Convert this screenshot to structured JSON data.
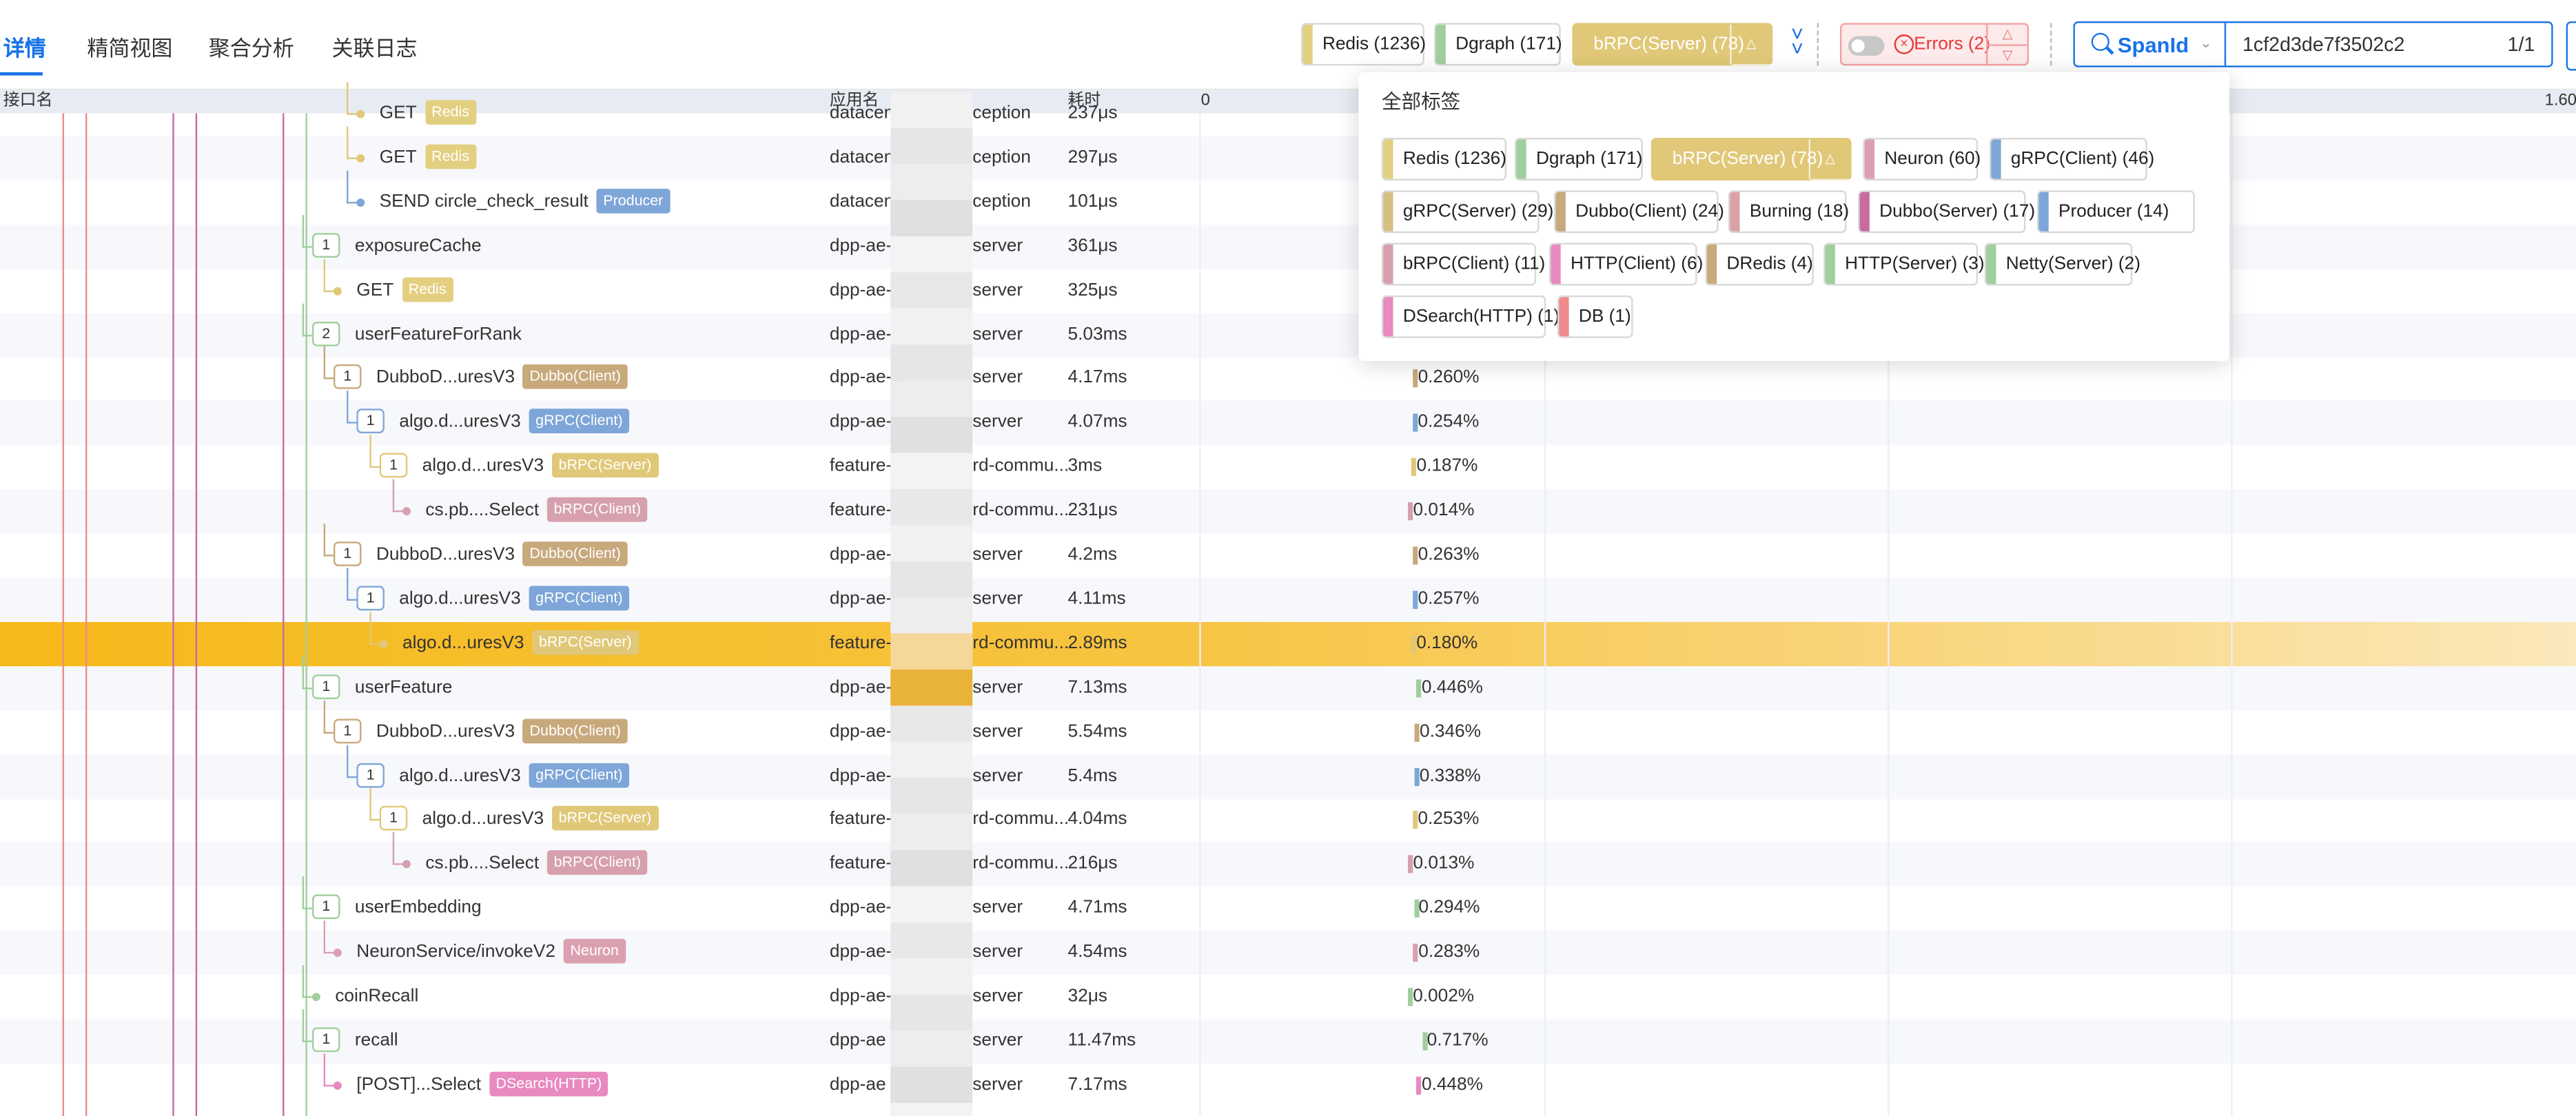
{
  "tabs": [
    "详情",
    "精简视图",
    "聚合分析",
    "关联日志"
  ],
  "active_tab": 0,
  "toolbar": {
    "chips": [
      {
        "label": "Redis (1236)",
        "color": "#e3cf80",
        "selected": false
      },
      {
        "label": "Dgraph (171)",
        "color": "#9fcf9c",
        "selected": false
      },
      {
        "label": "bRPC(Server) (78)",
        "color": "#e0c878",
        "selected": true
      }
    ],
    "expand_icon": "chevrons-down-icon",
    "errors_label": "Errors (2)",
    "search": {
      "field": "SpanId",
      "value": "1cf2d3de7f3502c2",
      "count": "1/1"
    }
  },
  "dropdown": {
    "title": "全部标签",
    "tags": [
      {
        "label": "Redis (1236)",
        "color": "#e3cf80"
      },
      {
        "label": "Dgraph (171)",
        "color": "#9fcf9c"
      },
      {
        "label": "bRPC(Server) (78)",
        "color": "#e0c878",
        "selected": true
      },
      {
        "label": "Neuron (60)",
        "color": "#dba0b0"
      },
      {
        "label": "gRPC(Client) (46)",
        "color": "#7ea6d8"
      },
      {
        "label": "gRPC(Server) (29)",
        "color": "#d6bf82"
      },
      {
        "label": "Dubbo(Client) (24)",
        "color": "#c8a97c"
      },
      {
        "label": "Burning (18)",
        "color": "#dba0a8"
      },
      {
        "label": "Dubbo(Server) (17)",
        "color": "#c76ba0"
      },
      {
        "label": "Producer (14)",
        "color": "#7ea6d8"
      },
      {
        "label": "bRPC(Client) (11)",
        "color": "#d7a0ae"
      },
      {
        "label": "HTTP(Client) (6)",
        "color": "#e889c0"
      },
      {
        "label": "DRedis (4)",
        "color": "#c8a97c"
      },
      {
        "label": "HTTP(Server) (3)",
        "color": "#9fcf9c"
      },
      {
        "label": "Netty(Server) (2)",
        "color": "#9fcf9c"
      },
      {
        "label": "DSearch(HTTP) (1)",
        "color": "#e889c0"
      },
      {
        "label": "DB (1)",
        "color": "#ef8a8a"
      }
    ]
  },
  "table": {
    "headers": {
      "name": "接口名",
      "app": "应用名",
      "time": "耗时",
      "axis_start": "0",
      "axis_end": "1.60"
    },
    "rows": [
      {
        "indent": 3,
        "count": null,
        "name": "GET",
        "badge": "Redis",
        "badge_color": "#e3cf80",
        "app": "datacent",
        "app2": "ception",
        "time": "237μs",
        "pct": "",
        "line_color": "#e0c878",
        "dot": true
      },
      {
        "indent": 3,
        "count": null,
        "name": "GET",
        "badge": "Redis",
        "badge_color": "#e3cf80",
        "app": "datacent",
        "app2": "ception",
        "time": "297μs",
        "pct": "",
        "line_color": "#e0c878",
        "dot": true
      },
      {
        "indent": 3,
        "count": null,
        "name": "SEND circle_check_result",
        "badge": "Producer",
        "badge_color": "#7ea6d8",
        "app": "datacent",
        "app2": "ception",
        "time": "101μs",
        "pct": "",
        "line_color": "#7ea6d8",
        "dot": true
      },
      {
        "indent": 1,
        "count": "1",
        "name": "exposureCache",
        "badge": "",
        "badge_color": "",
        "app": "dpp-ae-c",
        "app2": "server",
        "time": "361μs",
        "pct": "",
        "line_color": "#9fcf9c",
        "dot": false
      },
      {
        "indent": 2,
        "count": null,
        "name": "GET",
        "badge": "Redis",
        "badge_color": "#e3cf80",
        "app": "dpp-ae-c",
        "app2": "server",
        "time": "325μs",
        "pct": "",
        "line_color": "#e0c878",
        "dot": true
      },
      {
        "indent": 1,
        "count": "2",
        "name": "userFeatureForRank",
        "badge": "",
        "badge_color": "",
        "app": "dpp-ae-c",
        "app2": "server",
        "time": "5.03ms",
        "pct": "",
        "line_color": "#9fcf9c",
        "dot": false
      },
      {
        "indent": 2,
        "count": "1",
        "name": "DubboD...uresV3",
        "badge": "Dubbo(Client)",
        "badge_color": "#c8a97c",
        "app": "dpp-ae-c",
        "app2": "server",
        "time": "4.17ms",
        "pct": "0.260%",
        "pct_color": "#c8a97c",
        "line_color": "#c8a97c",
        "dot": false
      },
      {
        "indent": 3,
        "count": "1",
        "name": "algo.d...uresV3",
        "badge": "gRPC(Client)",
        "badge_color": "#7ea6d8",
        "app": "dpp-ae-c",
        "app2": "server",
        "time": "4.07ms",
        "pct": "0.254%",
        "pct_color": "#7ea6d8",
        "line_color": "#7ea6d8",
        "dot": false
      },
      {
        "indent": 4,
        "count": "1",
        "name": "algo.d...uresV3",
        "badge": "bRPC(Server)",
        "badge_color": "#e0c878",
        "app": "feature-p",
        "app2": "rd-commu...",
        "time": "3ms",
        "pct": "0.187%",
        "pct_color": "#e0c878",
        "line_color": "#e0c878",
        "dot": false
      },
      {
        "indent": 5,
        "count": null,
        "name": "cs.pb....Select",
        "badge": "bRPC(Client)",
        "badge_color": "#d7a0ae",
        "app": "feature-p",
        "app2": "rd-commu...",
        "time": "231μs",
        "pct": "0.014%",
        "pct_color": "#d7a0ae",
        "line_color": "#d7a0ae",
        "dot": true
      },
      {
        "indent": 2,
        "count": "1",
        "name": "DubboD...uresV3",
        "badge": "Dubbo(Client)",
        "badge_color": "#c8a97c",
        "app": "dpp-ae-c",
        "app2": "server",
        "time": "4.2ms",
        "pct": "0.263%",
        "pct_color": "#c8a97c",
        "line_color": "#c8a97c",
        "dot": false
      },
      {
        "indent": 3,
        "count": "1",
        "name": "algo.d...uresV3",
        "badge": "gRPC(Client)",
        "badge_color": "#7ea6d8",
        "app": "dpp-ae-c",
        "app2": "server",
        "time": "4.11ms",
        "pct": "0.257%",
        "pct_color": "#7ea6d8",
        "line_color": "#7ea6d8",
        "dot": false
      },
      {
        "indent": 4,
        "count": null,
        "name": "algo.d...uresV3",
        "badge": "bRPC(Server)",
        "badge_color": "#e0c878",
        "app": "feature-p",
        "app2": "rd-commu...",
        "time": "2.89ms",
        "pct": "0.180%",
        "pct_color": "#e0c878",
        "line_color": "#e0c878",
        "dot": true,
        "highlight": true
      },
      {
        "indent": 1,
        "count": "1",
        "name": "userFeature",
        "badge": "",
        "badge_color": "",
        "app": "dpp-ae-c",
        "app2": "server",
        "time": "7.13ms",
        "pct": "0.446%",
        "pct_color": "#9fcf9c",
        "line_color": "#9fcf9c",
        "dot": false
      },
      {
        "indent": 2,
        "count": "1",
        "name": "DubboD...uresV3",
        "badge": "Dubbo(Client)",
        "badge_color": "#c8a97c",
        "app": "dpp-ae-c",
        "app2": "server",
        "time": "5.54ms",
        "pct": "0.346%",
        "pct_color": "#c8a97c",
        "line_color": "#c8a97c",
        "dot": false
      },
      {
        "indent": 3,
        "count": "1",
        "name": "algo.d...uresV3",
        "badge": "gRPC(Client)",
        "badge_color": "#7ea6d8",
        "app": "dpp-ae-c",
        "app2": "server",
        "time": "5.4ms",
        "pct": "0.338%",
        "pct_color": "#7ea6d8",
        "line_color": "#7ea6d8",
        "dot": false
      },
      {
        "indent": 4,
        "count": "1",
        "name": "algo.d...uresV3",
        "badge": "bRPC(Server)",
        "badge_color": "#e0c878",
        "app": "feature-p",
        "app2": "rd-commu...",
        "time": "4.04ms",
        "pct": "0.253%",
        "pct_color": "#e0c878",
        "line_color": "#e0c878",
        "dot": false
      },
      {
        "indent": 5,
        "count": null,
        "name": "cs.pb....Select",
        "badge": "bRPC(Client)",
        "badge_color": "#d7a0ae",
        "app": "feature-p",
        "app2": "rd-commu...",
        "time": "216μs",
        "pct": "0.013%",
        "pct_color": "#d7a0ae",
        "line_color": "#d7a0ae",
        "dot": true
      },
      {
        "indent": 1,
        "count": "1",
        "name": "userEmbedding",
        "badge": "",
        "badge_color": "",
        "app": "dpp-ae-c",
        "app2": "server",
        "time": "4.71ms",
        "pct": "0.294%",
        "pct_color": "#9fcf9c",
        "line_color": "#9fcf9c",
        "dot": false
      },
      {
        "indent": 2,
        "count": null,
        "name": "NeuronService/invokeV2",
        "badge": "Neuron",
        "badge_color": "#dba0b0",
        "app": "dpp-ae-c",
        "app2": "server",
        "time": "4.54ms",
        "pct": "0.283%",
        "pct_color": "#dba0b0",
        "line_color": "#dba0b0",
        "dot": true
      },
      {
        "indent": 1,
        "count": null,
        "name": "coinRecall",
        "badge": "",
        "badge_color": "",
        "app": "dpp-ae-",
        "app2": "server",
        "time": "32μs",
        "pct": "0.002%",
        "pct_color": "#9fcf9c",
        "line_color": "#9fcf9c",
        "dot": true
      },
      {
        "indent": 1,
        "count": "1",
        "name": "recall",
        "badge": "",
        "badge_color": "",
        "app": "dpp-ae",
        "app2": "server",
        "time": "11.47ms",
        "pct": "0.717%",
        "pct_color": "#9fcf9c",
        "line_color": "#9fcf9c",
        "dot": false
      },
      {
        "indent": 2,
        "count": null,
        "name": "[POST]...Select",
        "badge": "DSearch(HTTP)",
        "badge_color": "#e889c0",
        "app": "dpp-ae",
        "app2": "server",
        "time": "7.17ms",
        "pct": "0.448%",
        "pct_color": "#e889c0",
        "line_color": "#e889c0",
        "dot": true
      }
    ]
  }
}
